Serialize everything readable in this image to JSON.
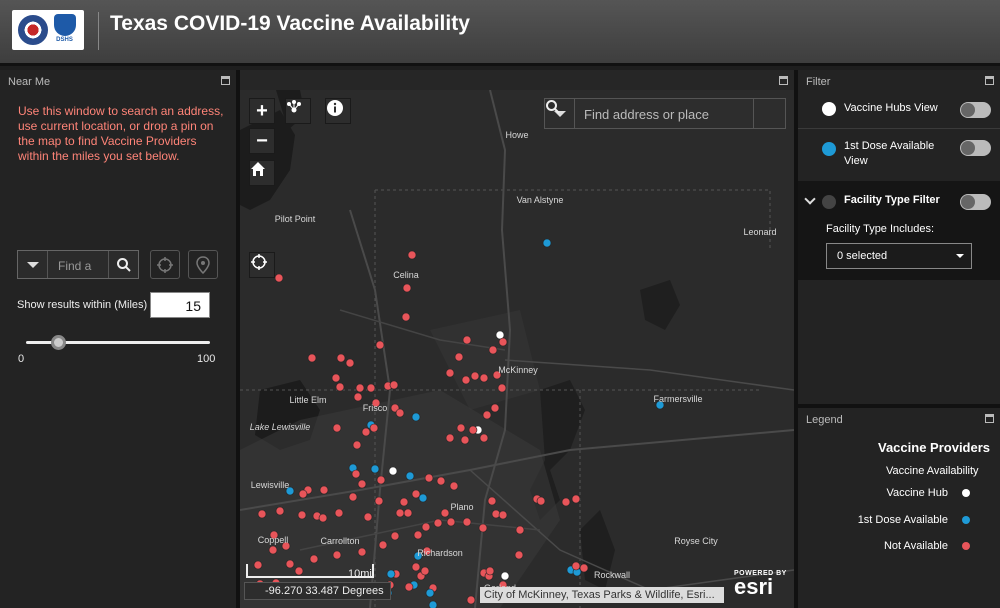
{
  "header": {
    "title": "Texas COVID-19 Vaccine Availability",
    "logo_text": "DSHS"
  },
  "near_me": {
    "title": "Near Me",
    "help_text": "Use this window to search an address, use current location, or drop a pin on the map to find Vaccine Providers within the miles you set below.",
    "search_placeholder": "Find a",
    "range_label": "Show results within (Miles)",
    "range_value": "15",
    "slider_min": "0",
    "slider_max": "100",
    "slider_value_fraction": 0.15
  },
  "map": {
    "search_placeholder": "Find address or place",
    "coordinates": "-96.270 33.487 Degrees",
    "attribution": "City of McKinney, Texas Parks & Wildlife, Esri...",
    "scale_label": "10mi",
    "esri_powered": "POWERED BY",
    "esri_brand": "esri",
    "place_labels": [
      {
        "name": "Howe"
      },
      {
        "name": "Van Alstyne"
      },
      {
        "name": "Leonard"
      },
      {
        "name": "Pilot Point"
      },
      {
        "name": "Celina"
      },
      {
        "name": "McKinney"
      },
      {
        "name": "Little Elm"
      },
      {
        "name": "Frisco"
      },
      {
        "name": "Farmersville"
      },
      {
        "name": "Lake Lewisville"
      },
      {
        "name": "Lewisville"
      },
      {
        "name": "Plano"
      },
      {
        "name": "Carrollton"
      },
      {
        "name": "Coppell"
      },
      {
        "name": "Richardson"
      },
      {
        "name": "Royse City"
      },
      {
        "name": "Rockwall"
      },
      {
        "name": "Garland"
      },
      {
        "name": "ROCKWALL"
      }
    ]
  },
  "filter": {
    "title": "Filter",
    "hubs_label": "Vaccine Hubs View",
    "first_dose_label": "1st Dose Available View",
    "facility_label": "Facility Type Filter",
    "facility_includes": "Facility Type Includes:",
    "facility_selected": "0 selected"
  },
  "legend": {
    "title": "Legend",
    "heading": "Vaccine Providers",
    "subheading": "Vaccine Availability",
    "items": [
      {
        "label": "Vaccine Hub",
        "color": "#ffffff"
      },
      {
        "label": "1st Dose Available",
        "color": "#1e9ad6"
      },
      {
        "label": "Not Available",
        "color": "#e8555a"
      }
    ]
  },
  "colors": {
    "not_available": "#e8555a",
    "first_dose": "#1e9ad6",
    "hub": "#ffffff"
  }
}
